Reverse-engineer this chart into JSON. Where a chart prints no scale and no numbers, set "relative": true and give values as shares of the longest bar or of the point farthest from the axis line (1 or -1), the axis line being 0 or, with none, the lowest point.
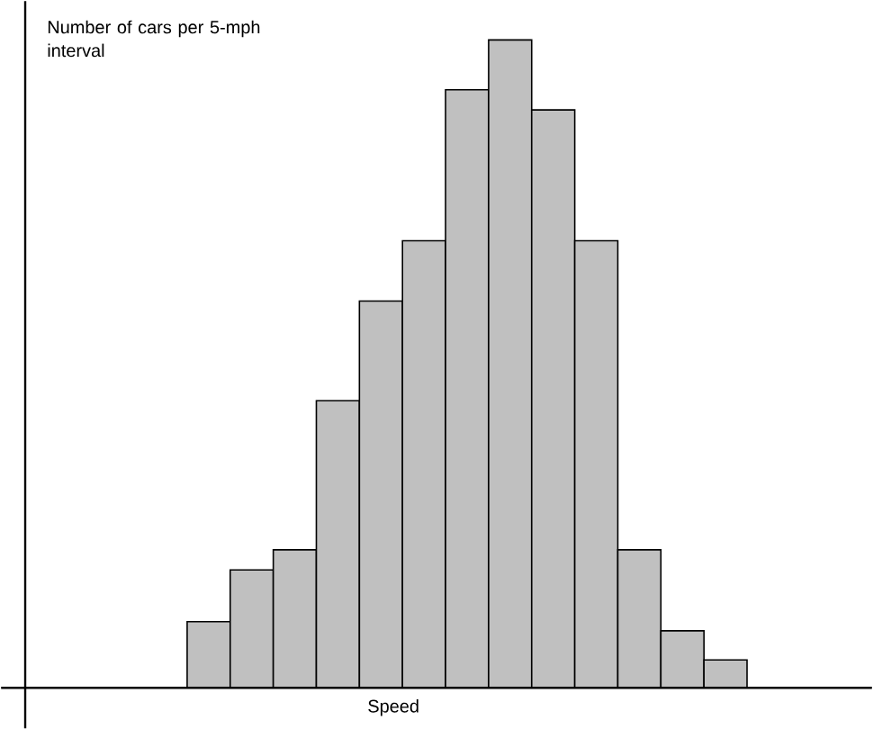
{
  "chart_data": {
    "type": "bar",
    "relative": true,
    "xlabel": "Speed",
    "ylabel": "Number of cars per 5-mph interval",
    "categories": [
      null,
      null,
      null,
      null,
      null,
      null,
      null,
      null,
      null,
      null,
      null,
      null,
      null
    ],
    "values": [
      0.102,
      0.182,
      0.213,
      0.443,
      0.597,
      0.69,
      0.923,
      1,
      0.892,
      0.69,
      0.213,
      0.088,
      0.043
    ],
    "color": "#c0c0c0"
  }
}
